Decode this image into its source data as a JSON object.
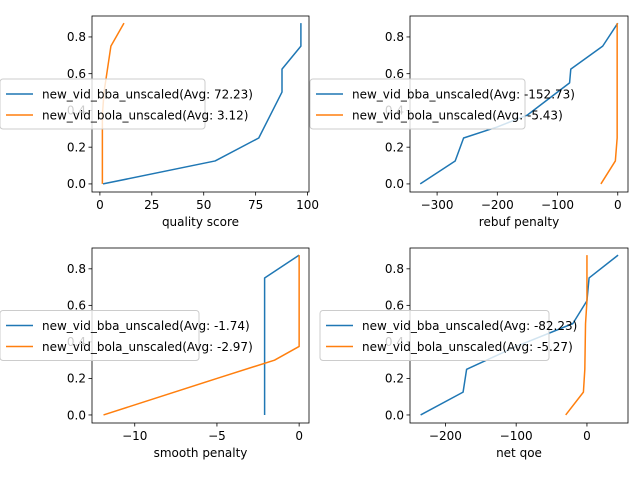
{
  "figure": {
    "background": "#ffffff"
  },
  "chart_data": [
    {
      "type": "line",
      "xlabel": "quality score",
      "ylabel": "",
      "xlim": [
        -3.8,
        100.7
      ],
      "ylim": [
        -0.044,
        0.914
      ],
      "xticks": [
        0,
        25,
        50,
        75,
        100
      ],
      "xtick_labels": [
        "0",
        "25",
        "50",
        "75",
        "100"
      ],
      "yticks": [
        0.0,
        0.2,
        0.4,
        0.6,
        0.8
      ],
      "ytick_labels": [
        "0.0",
        "0.2",
        "0.4",
        "0.6",
        "0.8"
      ],
      "legend_position": "center-left",
      "series": [
        {
          "name": "new_vid_bba_unscaled(Avg: 72.23)",
          "color": "#1f77b4",
          "x": [
            1.5,
            55.5,
            76.5,
            87.7,
            87.7,
            96.8,
            96.8
          ],
          "y": [
            0.0,
            0.125,
            0.25,
            0.5,
            0.625,
            0.75,
            0.875
          ]
        },
        {
          "name": "new_vid_bola_unscaled(Avg: 3.12)",
          "color": "#ff7f0e",
          "x": [
            1.2,
            1.2,
            1.2,
            1.2,
            2.0,
            5.3,
            11.6
          ],
          "y": [
            0.0,
            0.125,
            0.25,
            0.375,
            0.5,
            0.75,
            0.875
          ]
        }
      ]
    },
    {
      "type": "line",
      "xlabel": "rebuf penalty",
      "ylabel": "",
      "xlim": [
        -345,
        17
      ],
      "ylim": [
        -0.044,
        0.914
      ],
      "xticks": [
        -300,
        -200,
        -100,
        0
      ],
      "xtick_labels": [
        "−300",
        "−200",
        "−100",
        "0"
      ],
      "yticks": [
        0.0,
        0.2,
        0.4,
        0.6,
        0.8
      ],
      "ytick_labels": [
        "0.0",
        "0.2",
        "0.4",
        "0.6",
        "0.8"
      ],
      "legend_position": "center-left",
      "series": [
        {
          "name": "new_vid_bba_unscaled(Avg: -152.73)",
          "color": "#1f77b4",
          "x": [
            -328,
            -270,
            -256,
            -200,
            -150,
            -80,
            -78,
            -25,
            0
          ],
          "y": [
            0.0,
            0.125,
            0.25,
            0.31,
            0.375,
            0.55,
            0.625,
            0.75,
            0.875
          ]
        },
        {
          "name": "new_vid_bola_unscaled(Avg: -5.43)",
          "color": "#ff7f0e",
          "x": [
            -28,
            -4,
            -1,
            -1,
            -1,
            -1
          ],
          "y": [
            0.0,
            0.125,
            0.25,
            0.5,
            0.75,
            0.875
          ]
        }
      ]
    },
    {
      "type": "line",
      "xlabel": "smooth penalty",
      "ylabel": "",
      "xlim": [
        -12.6,
        0.6
      ],
      "ylim": [
        -0.044,
        0.914
      ],
      "xticks": [
        -10,
        -5,
        0
      ],
      "xtick_labels": [
        "−10",
        "−5",
        "0"
      ],
      "yticks": [
        0.0,
        0.2,
        0.4,
        0.6,
        0.8
      ],
      "ytick_labels": [
        "0.0",
        "0.2",
        "0.4",
        "0.6",
        "0.8"
      ],
      "legend_position": "center-left",
      "series": [
        {
          "name": "new_vid_bba_unscaled(Avg: -1.74)",
          "color": "#1f77b4",
          "x": [
            -2.1,
            -2.1,
            -2.1,
            -2.1,
            -2.1,
            0.0
          ],
          "y": [
            0.0,
            0.25,
            0.5,
            0.625,
            0.75,
            0.875
          ]
        },
        {
          "name": "new_vid_bola_unscaled(Avg: -2.97)",
          "color": "#ff7f0e",
          "x": [
            -11.9,
            -5.0,
            -1.5,
            0.0,
            0.0,
            0.0
          ],
          "y": [
            0.0,
            0.2,
            0.3,
            0.375,
            0.5,
            0.875
          ]
        }
      ]
    },
    {
      "type": "line",
      "xlabel": "net qoe",
      "ylabel": "",
      "xlim": [
        -250,
        58
      ],
      "ylim": [
        -0.044,
        0.914
      ],
      "xticks": [
        -200,
        -100,
        0
      ],
      "xtick_labels": [
        "−200",
        "−100",
        "0"
      ],
      "yticks": [
        0.0,
        0.2,
        0.4,
        0.6,
        0.8
      ],
      "ytick_labels": [
        "0.0",
        "0.2",
        "0.4",
        "0.6",
        "0.8"
      ],
      "legend_position": "center-left",
      "series": [
        {
          "name": "new_vid_bba_unscaled(Avg: -82.23)",
          "color": "#1f77b4",
          "x": [
            -235,
            -175,
            -170,
            -100,
            -20,
            0,
            3,
            44
          ],
          "y": [
            0.0,
            0.125,
            0.25,
            0.375,
            0.5,
            0.625,
            0.75,
            0.875
          ]
        },
        {
          "name": "new_vid_bola_unscaled(Avg: -5.27)",
          "color": "#ff7f0e",
          "x": [
            -30,
            -5,
            -3,
            -2,
            0,
            0
          ],
          "y": [
            0.0,
            0.125,
            0.25,
            0.5,
            0.625,
            0.875
          ]
        }
      ]
    }
  ]
}
